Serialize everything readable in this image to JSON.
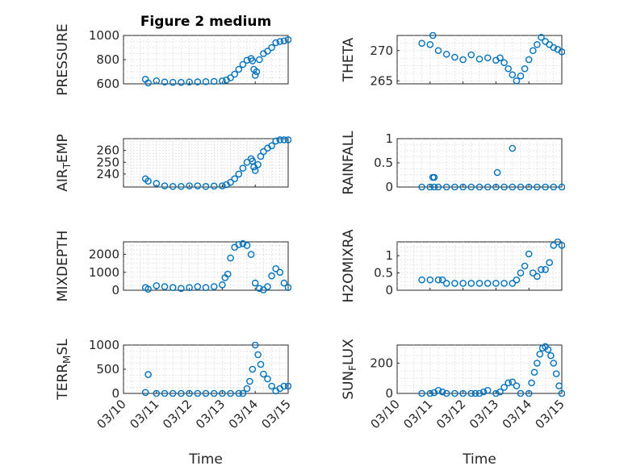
{
  "chart_data": [
    {
      "type": "scatter",
      "title": "Figure 2 medium",
      "ylabel": "PRESSURE",
      "xlabel": "",
      "xlim": [
        "03/10",
        "03/15"
      ],
      "ylim": [
        600,
        1000
      ],
      "yticks": [
        "600",
        "800",
        "1000"
      ],
      "xticks": [
        "03/10",
        "03/11",
        "03/12",
        "03/13",
        "03/14",
        "03/15"
      ],
      "grid": true,
      "color": "#0072BD",
      "x": [
        "03/10 16:00",
        "03/10 18:00",
        "03/11 00:00",
        "03/11 06:00",
        "03/11 12:00",
        "03/11 18:00",
        "03/12 00:00",
        "03/12 06:00",
        "03/12 12:00",
        "03/12 18:00",
        "03/13 00:00",
        "03/13 03:00",
        "03/13 06:00",
        "03/13 09:00",
        "03/13 12:00",
        "03/13 15:00",
        "03/13 18:00",
        "03/13 21:00",
        "03/13 22:00",
        "03/13 23:00",
        "03/14 00:00",
        "03/14 01:00",
        "03/14 03:00",
        "03/14 06:00",
        "03/14 09:00",
        "03/14 12:00",
        "03/14 15:00",
        "03/14 18:00",
        "03/14 21:00",
        "03/15 00:00"
      ],
      "y": [
        638,
        608,
        625,
        615,
        612,
        612,
        615,
        616,
        618,
        620,
        624,
        632,
        650,
        680,
        720,
        760,
        795,
        810,
        790,
        720,
        670,
        700,
        800,
        850,
        870,
        900,
        940,
        950,
        955,
        965
      ]
    },
    {
      "type": "scatter",
      "title": "",
      "ylabel": "THETA",
      "xlabel": "",
      "xlim": [
        "03/10",
        "03/15"
      ],
      "ylim": [
        264.5,
        272.5
      ],
      "yticks": [
        "265",
        "270"
      ],
      "xticks": [
        "03/10",
        "03/11",
        "03/12",
        "03/13",
        "03/14",
        "03/15"
      ],
      "grid": true,
      "color": "#0072BD",
      "x": [
        "03/10 18:00",
        "03/11 00:00",
        "03/11 02:00",
        "03/11 06:00",
        "03/11 12:00",
        "03/11 18:00",
        "03/12 00:00",
        "03/12 06:00",
        "03/12 12:00",
        "03/12 18:00",
        "03/13 00:00",
        "03/13 03:00",
        "03/13 06:00",
        "03/13 09:00",
        "03/13 12:00",
        "03/13 15:00",
        "03/13 18:00",
        "03/13 21:00",
        "03/14 00:00",
        "03/14 03:00",
        "03/14 06:00",
        "03/14 09:00",
        "03/14 12:00",
        "03/14 15:00",
        "03/14 18:00",
        "03/14 21:00",
        "03/15 00:00"
      ],
      "y": [
        271.2,
        271.0,
        272.5,
        270.0,
        269.4,
        268.9,
        268.5,
        269.3,
        268.6,
        268.8,
        268.4,
        268.8,
        268.0,
        267.0,
        266.0,
        265.0,
        265.8,
        267.0,
        268.5,
        270.0,
        271.0,
        272.2,
        271.5,
        271.0,
        270.5,
        270.2,
        269.8
      ]
    },
    {
      "type": "scatter",
      "title": "",
      "ylabel": "AIR_TEMP",
      "xlabel": "",
      "xlim": [
        "03/10",
        "03/15"
      ],
      "ylim": [
        229,
        270
      ],
      "yticks": [
        "240",
        "250",
        "260"
      ],
      "xticks": [
        "03/10",
        "03/11",
        "03/12",
        "03/13",
        "03/14",
        "03/15"
      ],
      "grid": true,
      "color": "#0072BD",
      "x": [
        "03/10 16:00",
        "03/10 18:00",
        "03/11 00:00",
        "03/11 06:00",
        "03/11 12:00",
        "03/11 18:00",
        "03/12 00:00",
        "03/12 06:00",
        "03/12 12:00",
        "03/12 18:00",
        "03/13 00:00",
        "03/13 03:00",
        "03/13 06:00",
        "03/13 09:00",
        "03/13 12:00",
        "03/13 15:00",
        "03/13 18:00",
        "03/13 21:00",
        "03/13 22:00",
        "03/13 23:00",
        "03/14 00:00",
        "03/14 02:00",
        "03/14 04:00",
        "03/14 06:00",
        "03/14 09:00",
        "03/14 12:00",
        "03/14 15:00",
        "03/14 18:00",
        "03/14 21:00",
        "03/15 00:00"
      ],
      "y": [
        236,
        234,
        232,
        230,
        229.5,
        229.5,
        230,
        230,
        229.5,
        229.8,
        230,
        231,
        233,
        236,
        240,
        245,
        250,
        253,
        251,
        246,
        243,
        248,
        255,
        259,
        262,
        264,
        268,
        269,
        269,
        269
      ]
    },
    {
      "type": "scatter",
      "title": "",
      "ylabel": "RAINFALL",
      "xlabel": "",
      "xlim": [
        "03/10",
        "03/15"
      ],
      "ylim": [
        0,
        1
      ],
      "yticks": [
        "0",
        "0.5",
        "1"
      ],
      "xticks": [
        "03/10",
        "03/11",
        "03/12",
        "03/13",
        "03/14",
        "03/15"
      ],
      "grid": true,
      "color": "#0072BD",
      "x": [
        "03/10 18:00",
        "03/11 00:00",
        "03/11 03:00",
        "03/11 06:00",
        "03/11 12:00",
        "03/11 18:00",
        "03/12 00:00",
        "03/12 06:00",
        "03/12 12:00",
        "03/12 18:00",
        "03/13 00:00",
        "03/13 06:00",
        "03/13 12:00",
        "03/13 18:00",
        "03/14 00:00",
        "03/14 06:00",
        "03/14 12:00",
        "03/14 18:00",
        "03/15 00:00",
        "03/11 02:00",
        "03/11 03:00",
        "03/13 01:00",
        "03/13 12:00"
      ],
      "y": [
        0,
        0,
        0,
        0,
        0,
        0,
        0,
        0,
        0,
        0,
        0,
        0,
        0,
        0,
        0,
        0,
        0,
        0,
        0,
        0.2,
        0.2,
        0.3,
        0.8
      ]
    },
    {
      "type": "scatter",
      "title": "",
      "ylabel": "MIXDEPTH",
      "xlabel": "",
      "xlim": [
        "03/10",
        "03/15"
      ],
      "ylim": [
        0,
        2700
      ],
      "yticks": [
        "0",
        "1000",
        "2000"
      ],
      "xticks": [
        "03/10",
        "03/11",
        "03/12",
        "03/13",
        "03/14",
        "03/15"
      ],
      "grid": true,
      "color": "#0072BD",
      "x": [
        "03/10 16:00",
        "03/10 18:00",
        "03/11 00:00",
        "03/11 06:00",
        "03/11 12:00",
        "03/11 18:00",
        "03/12 00:00",
        "03/12 06:00",
        "03/12 12:00",
        "03/12 18:00",
        "03/13 00:00",
        "03/13 02:00",
        "03/13 04:00",
        "03/13 06:00",
        "03/13 09:00",
        "03/13 12:00",
        "03/13 15:00",
        "03/13 18:00",
        "03/13 21:00",
        "03/14 00:00",
        "03/14 03:00",
        "03/14 06:00",
        "03/14 09:00",
        "03/14 12:00",
        "03/14 15:00",
        "03/14 18:00",
        "03/14 21:00",
        "03/15 00:00"
      ],
      "y": [
        150,
        60,
        250,
        200,
        150,
        100,
        150,
        200,
        150,
        200,
        300,
        700,
        900,
        1800,
        2400,
        2550,
        2600,
        2500,
        2000,
        400,
        100,
        20,
        200,
        800,
        1200,
        1000,
        400,
        150
      ]
    },
    {
      "type": "scatter",
      "title": "",
      "ylabel": "H2OMIXRA",
      "xlabel": "",
      "xlim": [
        "03/10",
        "03/15"
      ],
      "ylim": [
        0,
        1.4
      ],
      "yticks": [
        "0",
        "0.5",
        "1"
      ],
      "xticks": [
        "03/10",
        "03/11",
        "03/12",
        "03/13",
        "03/14",
        "03/15"
      ],
      "grid": true,
      "color": "#0072BD",
      "x": [
        "03/10 18:00",
        "03/11 00:00",
        "03/11 06:00",
        "03/11 09:00",
        "03/11 12:00",
        "03/11 18:00",
        "03/12 00:00",
        "03/12 06:00",
        "03/12 12:00",
        "03/12 18:00",
        "03/13 00:00",
        "03/13 06:00",
        "03/13 12:00",
        "03/13 15:00",
        "03/13 18:00",
        "03/13 21:00",
        "03/14 00:00",
        "03/14 03:00",
        "03/14 06:00",
        "03/14 09:00",
        "03/14 12:00",
        "03/14 15:00",
        "03/14 18:00",
        "03/14 21:00",
        "03/15 00:00"
      ],
      "y": [
        0.3,
        0.3,
        0.3,
        0.3,
        0.2,
        0.2,
        0.2,
        0.2,
        0.2,
        0.2,
        0.2,
        0.2,
        0.2,
        0.3,
        0.5,
        0.7,
        1.05,
        0.5,
        0.4,
        0.6,
        0.6,
        0.8,
        1.3,
        1.4,
        1.3
      ]
    },
    {
      "type": "scatter",
      "title": "",
      "ylabel": "TERR_MSL",
      "xlabel": "Time",
      "xlim": [
        "03/10",
        "03/15"
      ],
      "ylim": [
        0,
        1000
      ],
      "yticks": [
        "0",
        "500",
        "1000"
      ],
      "xticks": [
        "03/10",
        "03/11",
        "03/12",
        "03/13",
        "03/14",
        "03/15"
      ],
      "grid": true,
      "color": "#0072BD",
      "x": [
        "03/10 16:00",
        "03/10 18:00",
        "03/11 00:00",
        "03/11 06:00",
        "03/11 12:00",
        "03/11 18:00",
        "03/12 00:00",
        "03/12 06:00",
        "03/12 12:00",
        "03/12 18:00",
        "03/13 00:00",
        "03/13 06:00",
        "03/13 12:00",
        "03/13 15:00",
        "03/13 18:00",
        "03/13 20:00",
        "03/13 22:00",
        "03/14 00:00",
        "03/14 02:00",
        "03/14 04:00",
        "03/14 06:00",
        "03/14 09:00",
        "03/14 12:00",
        "03/14 15:00",
        "03/14 18:00",
        "03/14 21:00",
        "03/15 00:00"
      ],
      "y": [
        20,
        390,
        0,
        0,
        0,
        0,
        0,
        0,
        0,
        0,
        0,
        0,
        0,
        0,
        100,
        250,
        500,
        1000,
        800,
        600,
        400,
        300,
        150,
        50,
        100,
        150,
        150
      ]
    },
    {
      "type": "scatter",
      "title": "",
      "ylabel": "SUN_FLUX",
      "xlabel": "Time",
      "xlim": [
        "03/10",
        "03/15"
      ],
      "ylim": [
        0,
        320
      ],
      "yticks": [
        "0",
        "200"
      ],
      "xticks": [
        "03/10",
        "03/11",
        "03/12",
        "03/13",
        "03/14",
        "03/15"
      ],
      "grid": true,
      "color": "#0072BD",
      "x": [
        "03/10 18:00",
        "03/11 00:00",
        "03/11 03:00",
        "03/11 06:00",
        "03/11 09:00",
        "03/11 12:00",
        "03/11 18:00",
        "03/12 00:00",
        "03/12 06:00",
        "03/12 09:00",
        "03/12 12:00",
        "03/12 15:00",
        "03/12 18:00",
        "03/13 00:00",
        "03/13 03:00",
        "03/13 06:00",
        "03/13 09:00",
        "03/13 12:00",
        "03/13 15:00",
        "03/13 18:00",
        "03/14 00:00",
        "03/14 02:00",
        "03/14 04:00",
        "03/14 06:00",
        "03/14 08:00",
        "03/14 10:00",
        "03/14 12:00",
        "03/14 14:00",
        "03/14 16:00",
        "03/14 18:00",
        "03/14 20:00",
        "03/14 22:00",
        "03/15 00:00"
      ],
      "y": [
        0,
        0,
        5,
        20,
        10,
        0,
        0,
        0,
        0,
        0,
        0,
        10,
        20,
        0,
        10,
        40,
        70,
        75,
        50,
        0,
        0,
        70,
        140,
        200,
        260,
        300,
        310,
        290,
        250,
        200,
        130,
        50,
        0
      ]
    }
  ]
}
